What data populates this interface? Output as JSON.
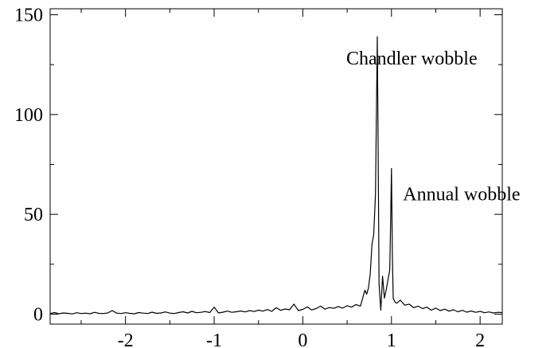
{
  "chart_data": {
    "type": "line",
    "title": "",
    "xlabel": "",
    "ylabel": "",
    "xlim": [
      -2.85,
      2.25
    ],
    "ylim": [
      -5,
      153
    ],
    "grid": false,
    "legend": "none",
    "line_color": "#000000",
    "x_ticks": [
      {
        "value": -2,
        "label": "-2"
      },
      {
        "value": -1,
        "label": "-1"
      },
      {
        "value": 0,
        "label": "0"
      },
      {
        "value": 1,
        "label": "1"
      },
      {
        "value": 2,
        "label": "2"
      }
    ],
    "y_ticks": [
      {
        "value": 0,
        "label": "0"
      },
      {
        "value": 50,
        "label": "50"
      },
      {
        "value": 100,
        "label": "100"
      },
      {
        "value": 150,
        "label": "150"
      }
    ],
    "annotations": [
      {
        "text": "Chandler wobble",
        "x": 0.49,
        "y": 125
      },
      {
        "text": "Annual wobble",
        "x": 1.13,
        "y": 57
      }
    ],
    "series": [
      {
        "x": [
          -2.85,
          -2.8,
          -2.75,
          -2.7,
          -2.65,
          -2.6,
          -2.55,
          -2.5,
          -2.45,
          -2.4,
          -2.35,
          -2.3,
          -2.25,
          -2.2,
          -2.15,
          -2.1,
          -2.05,
          -2.0,
          -1.95,
          -1.9,
          -1.85,
          -1.8,
          -1.75,
          -1.7,
          -1.65,
          -1.6,
          -1.55,
          -1.5,
          -1.45,
          -1.4,
          -1.35,
          -1.3,
          -1.25,
          -1.2,
          -1.15,
          -1.1,
          -1.05,
          -1.0,
          -0.95,
          -0.9,
          -0.85,
          -0.8,
          -0.75,
          -0.7,
          -0.65,
          -0.6,
          -0.55,
          -0.5,
          -0.45,
          -0.4,
          -0.35,
          -0.3,
          -0.25,
          -0.2,
          -0.15,
          -0.1,
          -0.05,
          0.0,
          0.05,
          0.1,
          0.15,
          0.2,
          0.25,
          0.3,
          0.35,
          0.4,
          0.45,
          0.5,
          0.55,
          0.6,
          0.65,
          0.7,
          0.72,
          0.74,
          0.76,
          0.78,
          0.8,
          0.82,
          0.84,
          0.85,
          0.86,
          0.88,
          0.9,
          0.92,
          0.94,
          0.96,
          0.98,
          0.99,
          1.0,
          1.01,
          1.02,
          1.04,
          1.06,
          1.1,
          1.15,
          1.2,
          1.25,
          1.3,
          1.35,
          1.4,
          1.45,
          1.5,
          1.55,
          1.6,
          1.65,
          1.7,
          1.75,
          1.8,
          1.85,
          1.9,
          1.95,
          2.0,
          2.05,
          2.1,
          2.15,
          2.2,
          2.25
        ],
        "y": [
          0.3,
          0.8,
          0.2,
          0.6,
          0.4,
          0.1,
          0.7,
          0.3,
          0.5,
          0.2,
          0.9,
          0.4,
          0.3,
          0.6,
          1.8,
          0.5,
          0.3,
          0.7,
          0.4,
          0.2,
          0.8,
          0.5,
          0.3,
          1.0,
          0.4,
          0.6,
          1.1,
          0.5,
          0.3,
          0.8,
          1.2,
          0.6,
          1.4,
          0.7,
          0.9,
          1.3,
          0.8,
          3.5,
          0.6,
          1.0,
          1.5,
          0.9,
          1.2,
          1.6,
          1.1,
          1.8,
          1.3,
          2.0,
          1.5,
          2.3,
          1.4,
          3.2,
          1.9,
          2.6,
          2.2,
          5.0,
          1.8,
          2.4,
          3.6,
          2.1,
          2.8,
          4.0,
          2.5,
          3.3,
          2.9,
          3.8,
          3.0,
          4.2,
          3.5,
          4.8,
          4.0,
          12.0,
          10.0,
          13.0,
          20.0,
          35.0,
          40.0,
          60.0,
          139.0,
          80.0,
          15.0,
          2.0,
          19.0,
          8.0,
          12.0,
          17.0,
          22.0,
          45.0,
          73.0,
          30.0,
          8.0,
          6.0,
          5.5,
          7.0,
          4.5,
          5.0,
          3.2,
          4.0,
          2.8,
          3.5,
          2.0,
          3.0,
          1.8,
          2.5,
          1.5,
          2.2,
          1.2,
          1.9,
          1.0,
          1.6,
          0.9,
          1.4,
          0.7,
          1.1,
          0.6,
          0.9,
          0.8
        ]
      }
    ]
  }
}
